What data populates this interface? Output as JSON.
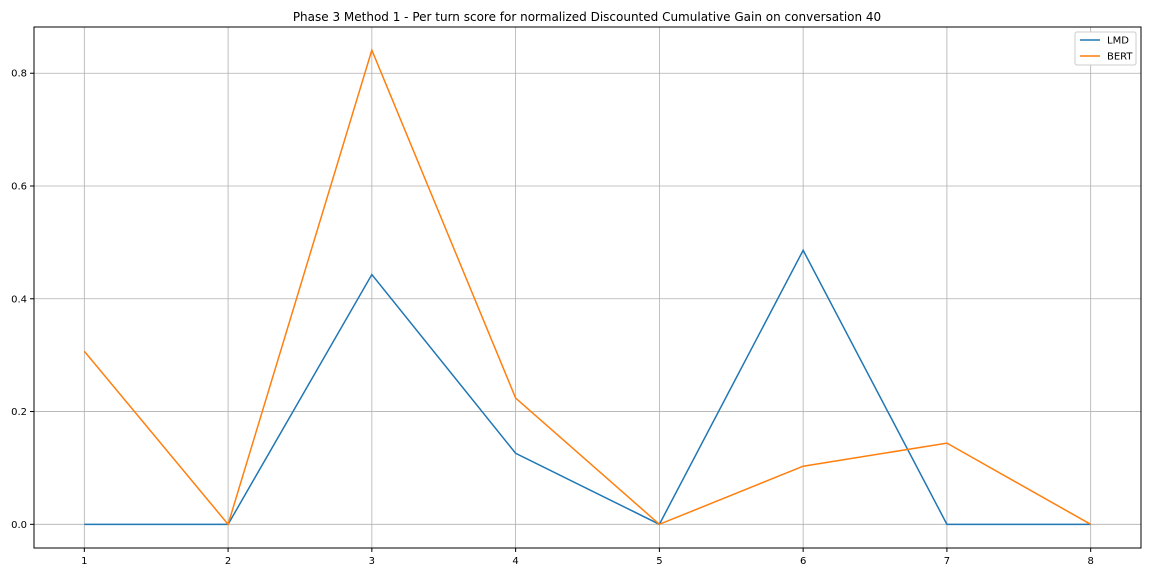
{
  "chart_data": {
    "type": "line",
    "title": "Phase 3 Method 1 - Per turn score for normalized Discounted Cumulative Gain on conversation 40",
    "xlabel": "",
    "ylabel": "",
    "x": [
      1,
      2,
      3,
      4,
      5,
      6,
      7,
      8
    ],
    "xticks": [
      1,
      2,
      3,
      4,
      5,
      6,
      7,
      8
    ],
    "yticks": [
      0.0,
      0.2,
      0.4,
      0.6,
      0.8
    ],
    "xlim": [
      0.65,
      8.35
    ],
    "ylim": [
      -0.042,
      0.882
    ],
    "grid": true,
    "legend_position": "top-right",
    "series": [
      {
        "name": "LMD",
        "color": "#1f77b4",
        "values": [
          0,
          0,
          0.443,
          0.126,
          0,
          0.486,
          0,
          0
        ]
      },
      {
        "name": "BERT",
        "color": "#ff7f0e",
        "values": [
          0.307,
          0,
          0.841,
          0.224,
          0,
          0.103,
          0.144,
          0
        ]
      }
    ]
  }
}
